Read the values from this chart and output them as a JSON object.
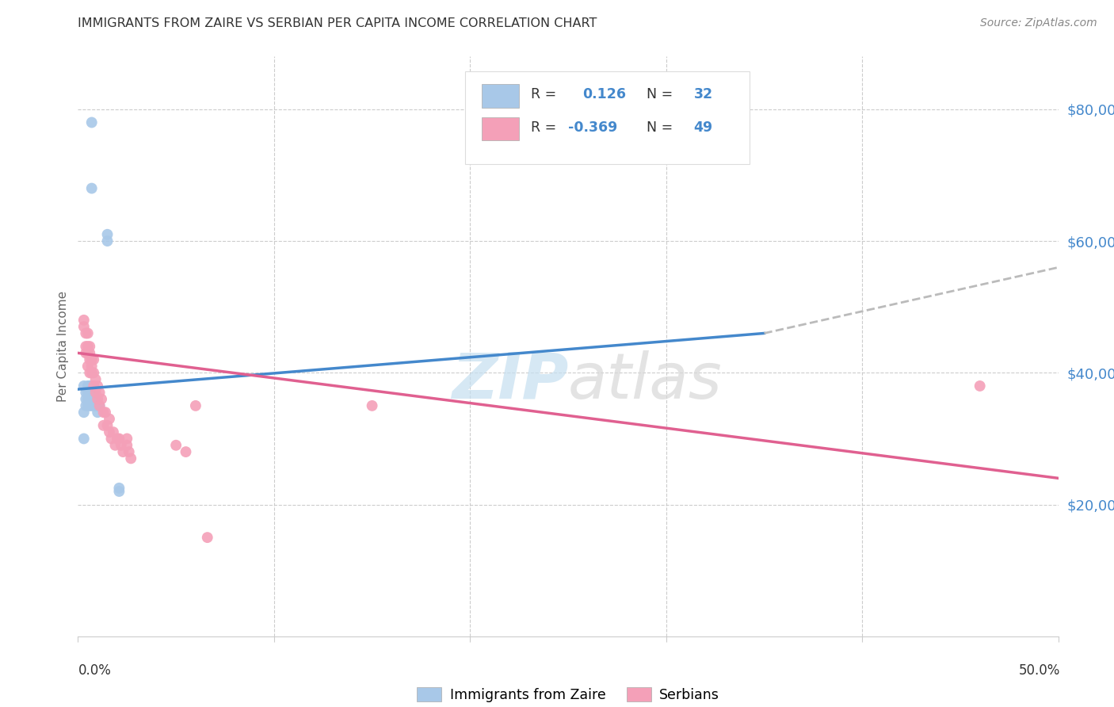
{
  "title": "IMMIGRANTS FROM ZAIRE VS SERBIAN PER CAPITA INCOME CORRELATION CHART",
  "source": "Source: ZipAtlas.com",
  "ylabel": "Per Capita Income",
  "legend_label1": "Immigrants from Zaire",
  "legend_label2": "Serbians",
  "ytick_labels": [
    "$20,000",
    "$40,000",
    "$60,000",
    "$80,000"
  ],
  "ytick_values": [
    20000,
    40000,
    60000,
    80000
  ],
  "color_blue": "#a8c8e8",
  "color_pink": "#f4a0b8",
  "color_blue_line": "#4488cc",
  "color_pink_line": "#e06090",
  "color_dashed_line": "#bbbbbb",
  "blue_scatter_x": [
    0.007,
    0.007,
    0.015,
    0.015,
    0.004,
    0.004,
    0.004,
    0.005,
    0.005,
    0.005,
    0.005,
    0.006,
    0.006,
    0.006,
    0.006,
    0.007,
    0.007,
    0.007,
    0.007,
    0.008,
    0.008,
    0.008,
    0.009,
    0.009,
    0.01,
    0.01,
    0.011,
    0.021,
    0.021,
    0.003,
    0.003,
    0.003
  ],
  "blue_scatter_y": [
    78000,
    68000,
    61000,
    60000,
    37000,
    36000,
    35000,
    38000,
    37000,
    36000,
    35000,
    38000,
    37000,
    36000,
    35000,
    38000,
    37000,
    36000,
    35000,
    38000,
    37000,
    35000,
    36000,
    35000,
    35000,
    34000,
    35000,
    22000,
    22500,
    38000,
    34000,
    30000
  ],
  "pink_scatter_x": [
    0.003,
    0.003,
    0.004,
    0.004,
    0.004,
    0.005,
    0.005,
    0.005,
    0.005,
    0.006,
    0.006,
    0.006,
    0.006,
    0.007,
    0.007,
    0.007,
    0.008,
    0.008,
    0.008,
    0.009,
    0.009,
    0.01,
    0.01,
    0.011,
    0.011,
    0.012,
    0.013,
    0.013,
    0.014,
    0.015,
    0.016,
    0.016,
    0.017,
    0.018,
    0.019,
    0.02,
    0.021,
    0.022,
    0.023,
    0.025,
    0.025,
    0.026,
    0.027,
    0.05,
    0.055,
    0.06,
    0.066,
    0.46,
    0.15
  ],
  "pink_scatter_y": [
    48000,
    47000,
    46000,
    44000,
    43000,
    46000,
    44000,
    43000,
    41000,
    44000,
    43000,
    42000,
    40000,
    42000,
    41000,
    40000,
    42000,
    40000,
    38000,
    39000,
    37000,
    38000,
    36000,
    37000,
    35000,
    36000,
    34000,
    32000,
    34000,
    32000,
    33000,
    31000,
    30000,
    31000,
    29000,
    30000,
    30000,
    29000,
    28000,
    30000,
    29000,
    28000,
    27000,
    29000,
    28000,
    35000,
    15000,
    38000,
    35000
  ],
  "blue_line_x": [
    0.0,
    0.35
  ],
  "blue_line_y": [
    37500,
    46000
  ],
  "pink_line_x": [
    0.0,
    0.5
  ],
  "pink_line_y": [
    43000,
    24000
  ],
  "dashed_line_x": [
    0.35,
    0.5
  ],
  "dashed_line_y": [
    46000,
    56000
  ],
  "xmin": 0.0,
  "xmax": 0.5,
  "ymin": 0,
  "ymax": 88000,
  "watermark_zip": "ZIP",
  "watermark_atlas": "atlas",
  "background_color": "#ffffff"
}
